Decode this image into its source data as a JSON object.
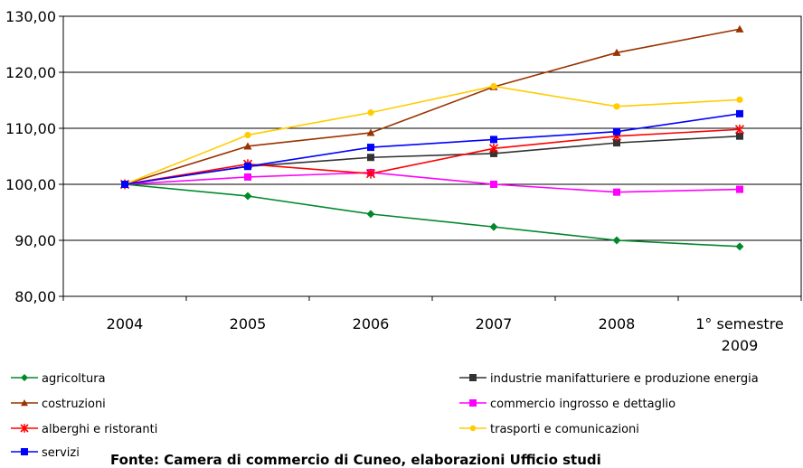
{
  "chart_data": {
    "type": "line",
    "categories": [
      "2004",
      "2005",
      "2006",
      "2007",
      "2008",
      "1° semestre 2009"
    ],
    "category_lines": [
      [
        "2004"
      ],
      [
        "2005"
      ],
      [
        "2006"
      ],
      [
        "2007"
      ],
      [
        "2008"
      ],
      [
        "1° semestre",
        "2009"
      ]
    ],
    "y_ticks": [
      "80,00",
      "90,00",
      "100,00",
      "110,00",
      "120,00",
      "130,00"
    ],
    "ylim": [
      80,
      130
    ],
    "grid": true,
    "legend_position": "bottom",
    "series": [
      {
        "name": "agricoltura",
        "color": "#00882b",
        "marker": "diamond",
        "values": [
          100,
          97.9,
          94.7,
          92.4,
          90.0,
          88.9
        ]
      },
      {
        "name": "industrie manifatturiere e produzione energia",
        "color": "#333333",
        "marker": "square",
        "values": [
          100,
          103.2,
          104.8,
          105.5,
          107.4,
          108.6
        ]
      },
      {
        "name": "costruzioni",
        "color": "#993300",
        "marker": "triangle",
        "values": [
          100,
          106.8,
          109.2,
          117.4,
          123.5,
          127.7
        ]
      },
      {
        "name": "commercio ingrosso e dettaglio",
        "color": "#ff00ff",
        "marker": "square",
        "values": [
          100,
          101.3,
          102.1,
          100.0,
          98.6,
          99.1
        ]
      },
      {
        "name": "alberghi e ristoranti",
        "color": "#ff0000",
        "marker": "star",
        "values": [
          100,
          103.6,
          101.9,
          106.4,
          108.6,
          109.8
        ]
      },
      {
        "name": "trasporti e comunicazioni",
        "color": "#ffcc00",
        "marker": "circle",
        "values": [
          100,
          108.8,
          112.8,
          117.5,
          113.9,
          115.1
        ]
      },
      {
        "name": "servizi",
        "color": "#0000ff",
        "marker": "square",
        "values": [
          100,
          103.2,
          106.6,
          108.0,
          109.4,
          112.6
        ]
      }
    ]
  },
  "source_note": "Fonte: Camera di commercio di Cuneo, elaborazioni Ufficio studi"
}
